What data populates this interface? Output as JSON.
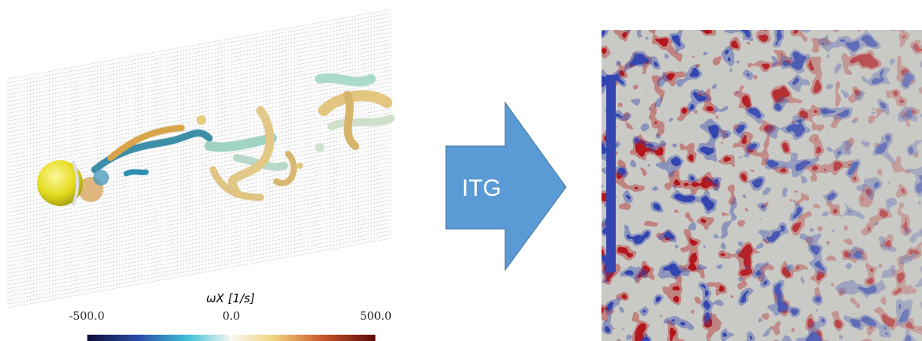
{
  "colorbar": {
    "label": "ωX [1/s]",
    "lim": [
      -500,
      500
    ],
    "ticks": [
      {
        "value": -500,
        "label": "-500.0"
      },
      {
        "value": 0,
        "label": "0.0"
      },
      {
        "value": 500,
        "label": "500.0"
      }
    ]
  },
  "arrow": {
    "label": "ITG"
  }
}
